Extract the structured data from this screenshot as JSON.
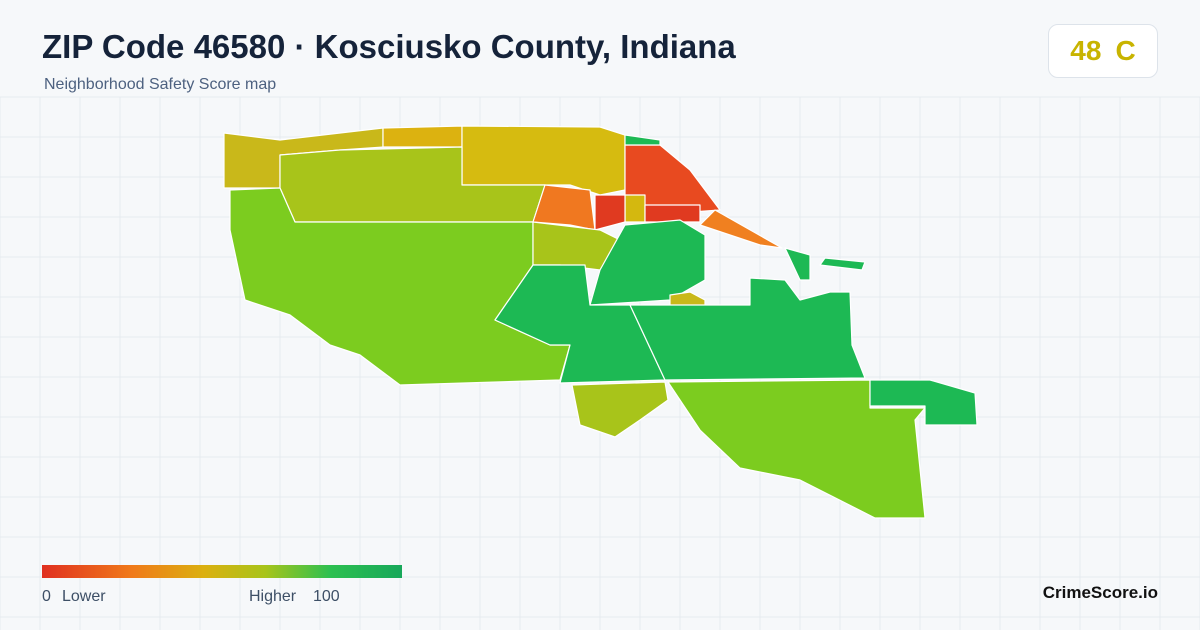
{
  "header": {
    "title": "ZIP Code 46580 · Kosciusko County, Indiana",
    "subtitle": "Neighborhood Safety Score map"
  },
  "score": {
    "value": "48",
    "grade": "C"
  },
  "legend": {
    "min": "0",
    "low_label": "Lower",
    "high_label": "Higher",
    "max": "100"
  },
  "brand": "CrimeScore.io"
}
